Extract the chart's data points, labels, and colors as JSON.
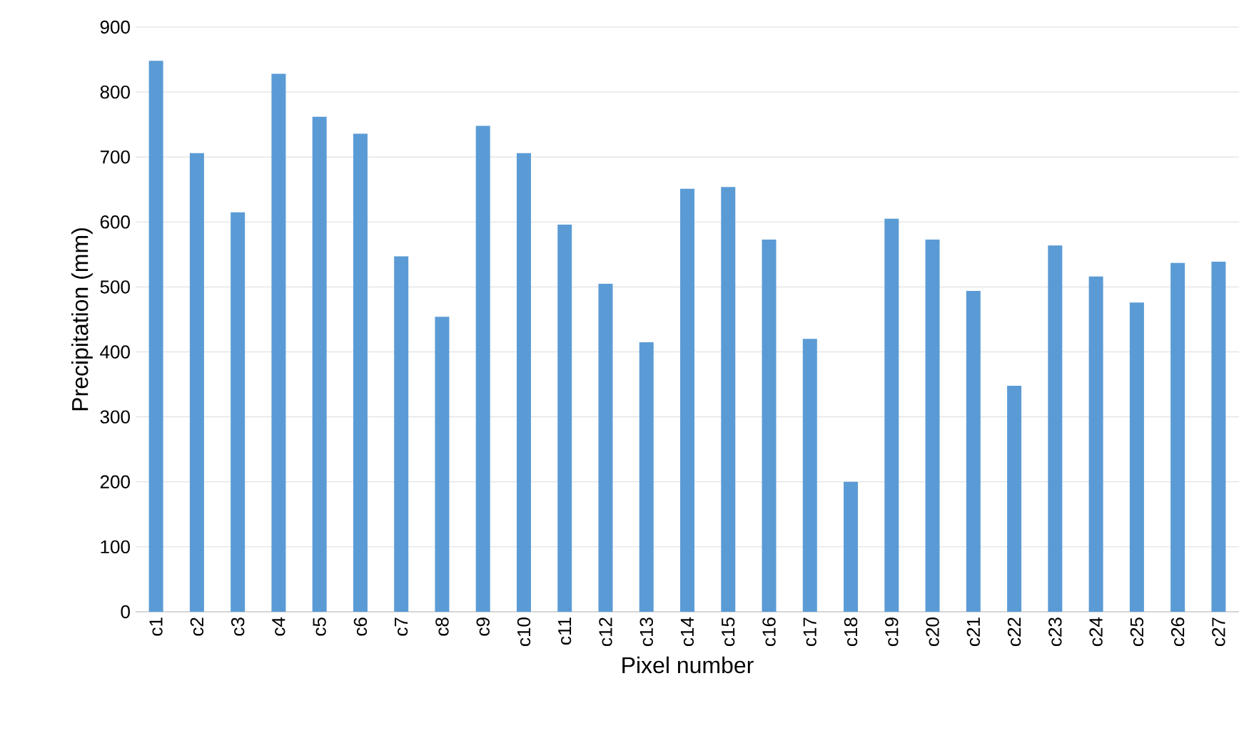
{
  "chart_data": {
    "type": "bar",
    "xlabel": "Pixel number",
    "ylabel": "Precipitation (mm)",
    "categories": [
      "c1",
      "c2",
      "c3",
      "c4",
      "c5",
      "c6",
      "c7",
      "c8",
      "c9",
      "c10",
      "c11",
      "c12",
      "c13",
      "c14",
      "c15",
      "c16",
      "c17",
      "c18",
      "c19",
      "c20",
      "c21",
      "c22",
      "c23",
      "c24",
      "c25",
      "c26",
      "c27"
    ],
    "values": [
      848,
      706,
      615,
      828,
      762,
      736,
      547,
      454,
      748,
      706,
      596,
      505,
      415,
      651,
      654,
      573,
      420,
      200,
      605,
      573,
      494,
      348,
      564,
      516,
      476,
      537,
      539
    ],
    "color": "#5b9bd5",
    "ylim": [
      0,
      900
    ],
    "yticks": [
      0,
      100,
      200,
      300,
      400,
      500,
      600,
      700,
      800,
      900
    ],
    "grid": "y"
  }
}
